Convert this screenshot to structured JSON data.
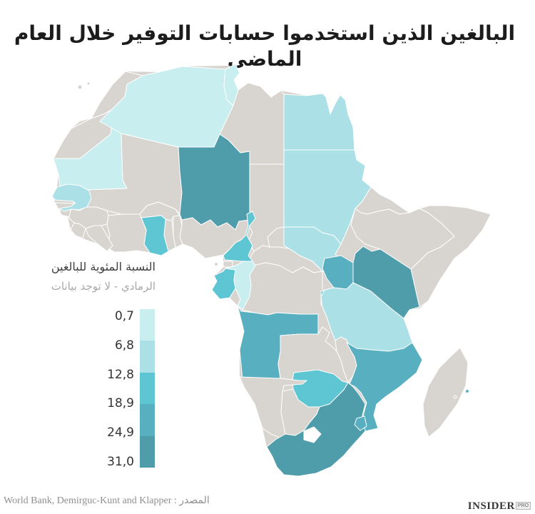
{
  "title": "البالغين الذين استخدموا حسابات التوفير خلال العام الماضي",
  "legend": {
    "title": "النسبة المئوية للبالغين",
    "no_data_note": "الرمادي - لا توجد بيانات",
    "ticks": [
      "0,7",
      "6,8",
      "12,8",
      "18,9",
      "24,9",
      "31,0"
    ],
    "band_keys": [
      "b1",
      "b2",
      "b3",
      "b4",
      "b5"
    ]
  },
  "palette": {
    "background": "#ffffff",
    "no_data": "#d8d5d0",
    "white": "#ffffff",
    "b1": "#c8eef0",
    "b2": "#abe0e6",
    "b3": "#5ec5d2",
    "b4": "#58afc0",
    "b5": "#4f9cab"
  },
  "source": {
    "text": "المصدر : World Bank, Demirguc-Kunt and Klapper"
  },
  "logo": {
    "name": "INSIDER",
    "badge": "PRO"
  },
  "chart_data": {
    "type": "choropleth",
    "region": "Africa",
    "title": "البالغين الذين استخدموا حسابات التوفير خلال العام الماضي",
    "unit": "percent of adults who saved at a financial institution in the past year",
    "legend_breaks": [
      0.7,
      6.8,
      12.8,
      18.9,
      24.9,
      31.0
    ],
    "no_data_color_note": "gray = no data",
    "countries": [
      {
        "id": "algeria",
        "band": "b1"
      },
      {
        "id": "tunisia",
        "band": "b1"
      },
      {
        "id": "mauritania",
        "band": "b1"
      },
      {
        "id": "congo-republic",
        "band": "b1"
      },
      {
        "id": "senegal",
        "band": "b2"
      },
      {
        "id": "egypt",
        "band": "b2"
      },
      {
        "id": "sudan",
        "band": "b2"
      },
      {
        "id": "south-sudan",
        "band": "b2"
      },
      {
        "id": "tanzania",
        "band": "b2"
      },
      {
        "id": "ghana",
        "band": "b3"
      },
      {
        "id": "cameroon",
        "band": "b3"
      },
      {
        "id": "gabon",
        "band": "b3"
      },
      {
        "id": "rwanda",
        "band": "b3"
      },
      {
        "id": "zimbabwe",
        "band": "b3"
      },
      {
        "id": "uganda",
        "band": "b4"
      },
      {
        "id": "angola",
        "band": "b4"
      },
      {
        "id": "mozambique",
        "band": "b4"
      },
      {
        "id": "swaziland",
        "band": "b4"
      },
      {
        "id": "comoros",
        "band": "b4"
      },
      {
        "id": "niger",
        "band": "b5"
      },
      {
        "id": "kenya",
        "band": "b5"
      },
      {
        "id": "south-africa",
        "band": "b5"
      },
      {
        "id": "morocco",
        "band": "no_data"
      },
      {
        "id": "western-sahara",
        "band": "no_data"
      },
      {
        "id": "mali",
        "band": "no_data"
      },
      {
        "id": "libya",
        "band": "no_data"
      },
      {
        "id": "chad",
        "band": "no_data"
      },
      {
        "id": "eritrea",
        "band": "no_data"
      },
      {
        "id": "ethiopia",
        "band": "no_data"
      },
      {
        "id": "somalia",
        "band": "no_data"
      },
      {
        "id": "nigeria",
        "band": "no_data"
      },
      {
        "id": "benin",
        "band": "no_data"
      },
      {
        "id": "togo",
        "band": "no_data"
      },
      {
        "id": "burkina-faso",
        "band": "no_data"
      },
      {
        "id": "cote-divoire",
        "band": "no_data"
      },
      {
        "id": "guinea",
        "band": "no_data"
      },
      {
        "id": "sierra-leone",
        "band": "no_data"
      },
      {
        "id": "liberia",
        "band": "no_data"
      },
      {
        "id": "guinea-bissau",
        "band": "no_data"
      },
      {
        "id": "gambia",
        "band": "no_data"
      },
      {
        "id": "central-african-republic",
        "band": "no_data"
      },
      {
        "id": "dr-congo",
        "band": "no_data"
      },
      {
        "id": "equatorial-guinea",
        "band": "no_data"
      },
      {
        "id": "burundi",
        "band": "no_data"
      },
      {
        "id": "zambia",
        "band": "no_data"
      },
      {
        "id": "malawi",
        "band": "no_data"
      },
      {
        "id": "namibia",
        "band": "no_data"
      },
      {
        "id": "botswana",
        "band": "no_data"
      },
      {
        "id": "madagascar",
        "band": "no_data"
      },
      {
        "id": "reunion",
        "band": "no_data"
      },
      {
        "id": "bioko",
        "band": "no_data"
      },
      {
        "id": "canary-islands",
        "band": "no_data"
      },
      {
        "id": "lesotho",
        "band": "white"
      }
    ]
  }
}
